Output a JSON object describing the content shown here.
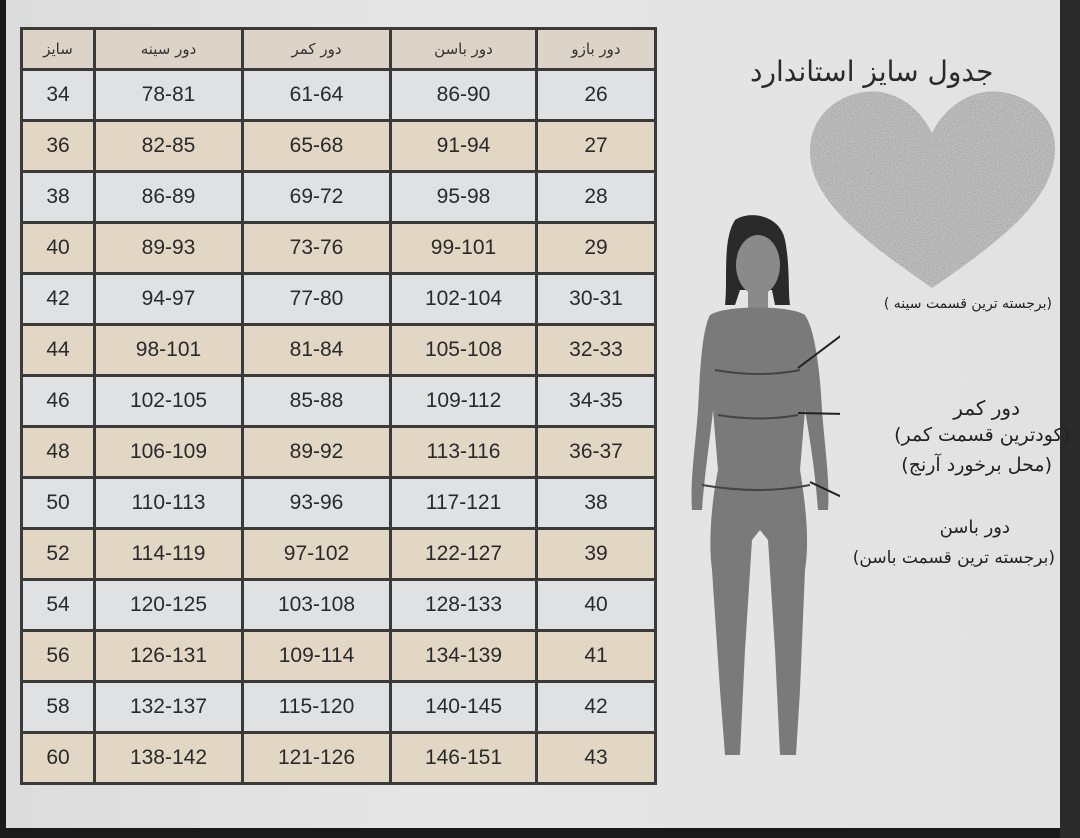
{
  "title": "جدول سایز استاندارد",
  "table": {
    "headers": [
      "سایز",
      "دور سینه",
      "دور کمر",
      "دور باسن",
      "دور بازو"
    ],
    "rows": [
      [
        "34",
        "78-81",
        "61-64",
        "86-90",
        "26"
      ],
      [
        "36",
        "82-85",
        "65-68",
        "91-94",
        "27"
      ],
      [
        "38",
        "86-89",
        "69-72",
        "95-98",
        "28"
      ],
      [
        "40",
        "89-93",
        "73-76",
        "99-101",
        "29"
      ],
      [
        "42",
        "94-97",
        "77-80",
        "102-104",
        "30-31"
      ],
      [
        "44",
        "98-101",
        "81-84",
        "105-108",
        "32-33"
      ],
      [
        "46",
        "102-105",
        "85-88",
        "109-112",
        "34-35"
      ],
      [
        "48",
        "106-109",
        "89-92",
        "113-116",
        "36-37"
      ],
      [
        "50",
        "110-113",
        "93-96",
        "117-121",
        "38"
      ],
      [
        "52",
        "114-119",
        "97-102",
        "122-127",
        "39"
      ],
      [
        "54",
        "120-125",
        "103-108",
        "128-133",
        "40"
      ],
      [
        "56",
        "126-131",
        "109-114",
        "134-139",
        "41"
      ],
      [
        "58",
        "132-137",
        "115-120",
        "140-145",
        "42"
      ],
      [
        "60",
        "138-142",
        "121-126",
        "146-151",
        "43"
      ]
    ]
  },
  "annotations": {
    "chest_note": "(برجسته ترین قسمت سینه )",
    "waist_title": "دور کمر",
    "waist_note1": "(کودترین قسمت کمر)",
    "waist_note2": "(محل برخورد آرنج)",
    "hip_title": "دور باسن",
    "hip_note": "(برجسته ترین قسمت باسن)"
  },
  "colors": {
    "alt_row": "#e2d6c4",
    "plain_row": "#dfe1e3",
    "border": "#3a3a3a",
    "figure": "#7a7a7a"
  }
}
